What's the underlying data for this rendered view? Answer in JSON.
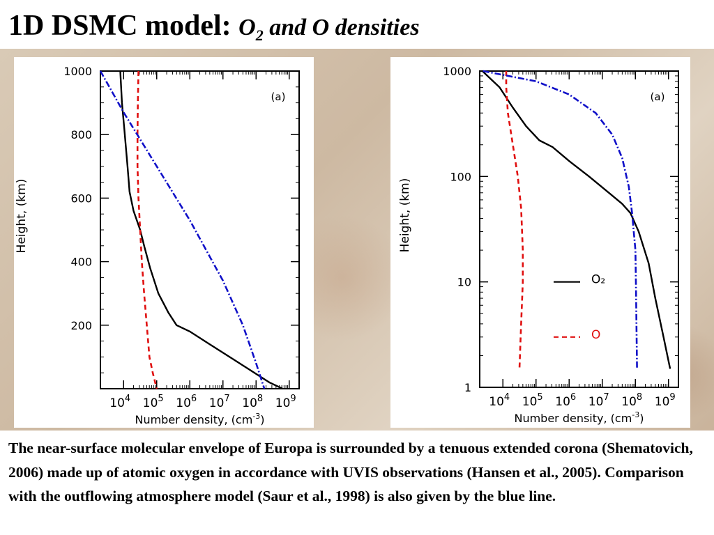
{
  "slide": {
    "title_main": "1D DSMC model: ",
    "title_sub_pre": "O",
    "title_sub_subscript": "2",
    "title_sub_post": " and O densities",
    "caption": "The near-surface molecular envelope of Europa is surrounded by a tenuous extended corona (Shematovich, 2006) made up of atomic oxygen in accordance with UVIS observations (Hansen et al., 2005). Comparison with the outflowing atmosphere model (Saur et al., 1998) is also given by the blue line."
  },
  "colors": {
    "o2": "#000000",
    "o": "#e01010",
    "saur_model": "#1010c8",
    "backdrop": "#d8c8b2"
  },
  "chart_data": [
    {
      "type": "line",
      "panel_label": "(a)",
      "xlabel": "Number density, (cm",
      "xlabel_sup": "-3",
      "xlabel_tail": ")",
      "ylabel": "Height, (km)",
      "xscale": "log",
      "yscale": "linear",
      "xlim_log10": [
        3.3,
        9.3
      ],
      "ylim": [
        0,
        1000
      ],
      "x_ticks": [
        {
          "base": "10",
          "exp": "4",
          "log10": 4
        },
        {
          "base": "10",
          "exp": "5",
          "log10": 5
        },
        {
          "base": "10",
          "exp": "6",
          "log10": 6
        },
        {
          "base": "10",
          "exp": "7",
          "log10": 7
        },
        {
          "base": "10",
          "exp": "8",
          "log10": 8
        },
        {
          "base": "10",
          "exp": "9",
          "log10": 9
        }
      ],
      "y_ticks": [
        {
          "label": "1000",
          "value": 1000
        },
        {
          "label": "800",
          "value": 800
        },
        {
          "label": "600",
          "value": 600
        },
        {
          "label": "400",
          "value": 400
        },
        {
          "label": "200",
          "value": 200
        }
      ],
      "series": [
        {
          "name": "O2",
          "style": "solid",
          "color_key": "o2",
          "points": [
            [
              3.9,
              1000
            ],
            [
              3.95,
              900
            ],
            [
              4.02,
              820
            ],
            [
              4.12,
              700
            ],
            [
              4.18,
              620
            ],
            [
              4.3,
              560
            ],
            [
              4.5,
              500
            ],
            [
              4.62,
              450
            ],
            [
              4.8,
              380
            ],
            [
              5.05,
              300
            ],
            [
              5.35,
              240
            ],
            [
              5.6,
              200
            ],
            [
              6.0,
              180
            ],
            [
              6.6,
              140
            ],
            [
              7.2,
              100
            ],
            [
              7.8,
              60
            ],
            [
              8.4,
              20
            ],
            [
              8.8,
              0
            ]
          ]
        },
        {
          "name": "O",
          "style": "dashed",
          "color_key": "o",
          "points": [
            [
              4.45,
              1000
            ],
            [
              4.43,
              900
            ],
            [
              4.42,
              800
            ],
            [
              4.42,
              700
            ],
            [
              4.45,
              600
            ],
            [
              4.5,
              500
            ],
            [
              4.55,
              400
            ],
            [
              4.62,
              300
            ],
            [
              4.7,
              200
            ],
            [
              4.78,
              100
            ],
            [
              4.88,
              50
            ],
            [
              5.0,
              0
            ]
          ]
        },
        {
          "name": "Saur et al. (1998)",
          "style": "dashdot",
          "color_key": "saur_model",
          "points": [
            [
              3.3,
              1000
            ],
            [
              4.0,
              870
            ],
            [
              5.0,
              700
            ],
            [
              6.0,
              530
            ],
            [
              7.0,
              340
            ],
            [
              7.6,
              200
            ],
            [
              8.0,
              80
            ],
            [
              8.25,
              0
            ]
          ]
        }
      ]
    },
    {
      "type": "line",
      "panel_label": "(a)",
      "xlabel": "Number density, (cm",
      "xlabel_sup": "-3",
      "xlabel_tail": ")",
      "ylabel": "Height, (km)",
      "xscale": "log",
      "yscale": "log",
      "xlim_log10": [
        3.3,
        9.3
      ],
      "ylim": [
        1,
        1000
      ],
      "x_ticks": [
        {
          "base": "10",
          "exp": "4",
          "log10": 4
        },
        {
          "base": "10",
          "exp": "5",
          "log10": 5
        },
        {
          "base": "10",
          "exp": "6",
          "log10": 6
        },
        {
          "base": "10",
          "exp": "7",
          "log10": 7
        },
        {
          "base": "10",
          "exp": "8",
          "log10": 8
        },
        {
          "base": "10",
          "exp": "9",
          "log10": 9
        }
      ],
      "y_ticks": [
        {
          "label": "1000",
          "value": 1000
        },
        {
          "label": "100",
          "value": 100
        },
        {
          "label": "10",
          "value": 10
        },
        {
          "label": "1",
          "value": 1
        }
      ],
      "legend": [
        {
          "label": "O₂",
          "style": "solid",
          "color_key": "o2"
        },
        {
          "label": "O",
          "style": "dashed",
          "color_key": "o"
        }
      ],
      "series": [
        {
          "name": "O2",
          "style": "solid",
          "color_key": "o2",
          "points": [
            [
              3.38,
              1000
            ],
            [
              3.9,
              700
            ],
            [
              4.3,
              450
            ],
            [
              4.7,
              300
            ],
            [
              5.1,
              220
            ],
            [
              5.5,
              190
            ],
            [
              6.0,
              140
            ],
            [
              6.6,
              100
            ],
            [
              7.2,
              70
            ],
            [
              7.6,
              55
            ],
            [
              7.85,
              45
            ],
            [
              8.1,
              30
            ],
            [
              8.4,
              15
            ],
            [
              8.6,
              7
            ],
            [
              8.85,
              3
            ],
            [
              9.05,
              1.5
            ]
          ]
        },
        {
          "name": "O",
          "style": "dashed",
          "color_key": "o",
          "points": [
            [
              4.1,
              1000
            ],
            [
              4.1,
              700
            ],
            [
              4.15,
              400
            ],
            [
              4.3,
              200
            ],
            [
              4.45,
              100
            ],
            [
              4.55,
              50
            ],
            [
              4.6,
              20
            ],
            [
              4.6,
              10
            ],
            [
              4.55,
              4
            ],
            [
              4.5,
              1.5
            ]
          ]
        },
        {
          "name": "Saur et al. (1998)",
          "style": "dashdot",
          "color_key": "saur_model",
          "points": [
            [
              3.4,
              1000
            ],
            [
              5.0,
              800
            ],
            [
              6.0,
              600
            ],
            [
              6.8,
              400
            ],
            [
              7.3,
              250
            ],
            [
              7.6,
              150
            ],
            [
              7.8,
              80
            ],
            [
              7.9,
              45
            ],
            [
              8.0,
              20
            ],
            [
              8.02,
              8
            ],
            [
              8.05,
              1.5
            ]
          ]
        }
      ]
    }
  ]
}
